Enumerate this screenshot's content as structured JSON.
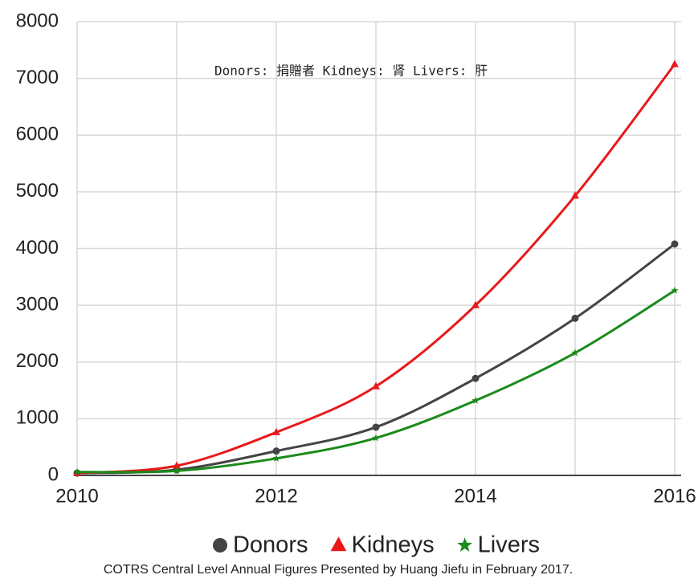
{
  "chart_data": {
    "type": "scatter",
    "annotation": "Donors: 捐贈者  Kidneys: 肾  Livers: 肝",
    "footnote": "COTRS Central Level Annual Figures Presented by Huang Jiefu in February 2017.",
    "x": [
      2010,
      2011,
      2012,
      2013,
      2014,
      2015,
      2016
    ],
    "series": [
      {
        "name": "Donors",
        "color": "#444444",
        "marker": "circle",
        "values": [
          40,
          100,
          430,
          850,
          1710,
          2770,
          4080
        ]
      },
      {
        "name": "Kidneys",
        "color": "#e8191a",
        "marker": "triangle",
        "values": [
          40,
          170,
          760,
          1570,
          3000,
          4930,
          7250
        ]
      },
      {
        "name": "Livers",
        "color": "#1a8a1a",
        "marker": "star",
        "values": [
          60,
          80,
          300,
          660,
          1320,
          2160,
          3260
        ]
      }
    ],
    "xlim": [
      2010,
      2016
    ],
    "xticks": [
      2010,
      2012,
      2014,
      2016
    ],
    "x_minor_ticks": [
      2011,
      2013,
      2015
    ],
    "ylim": [
      0,
      8000
    ],
    "yticks": [
      0,
      1000,
      2000,
      3000,
      4000,
      5000,
      6000,
      7000,
      8000
    ],
    "grid": true,
    "legend": "bottom"
  }
}
